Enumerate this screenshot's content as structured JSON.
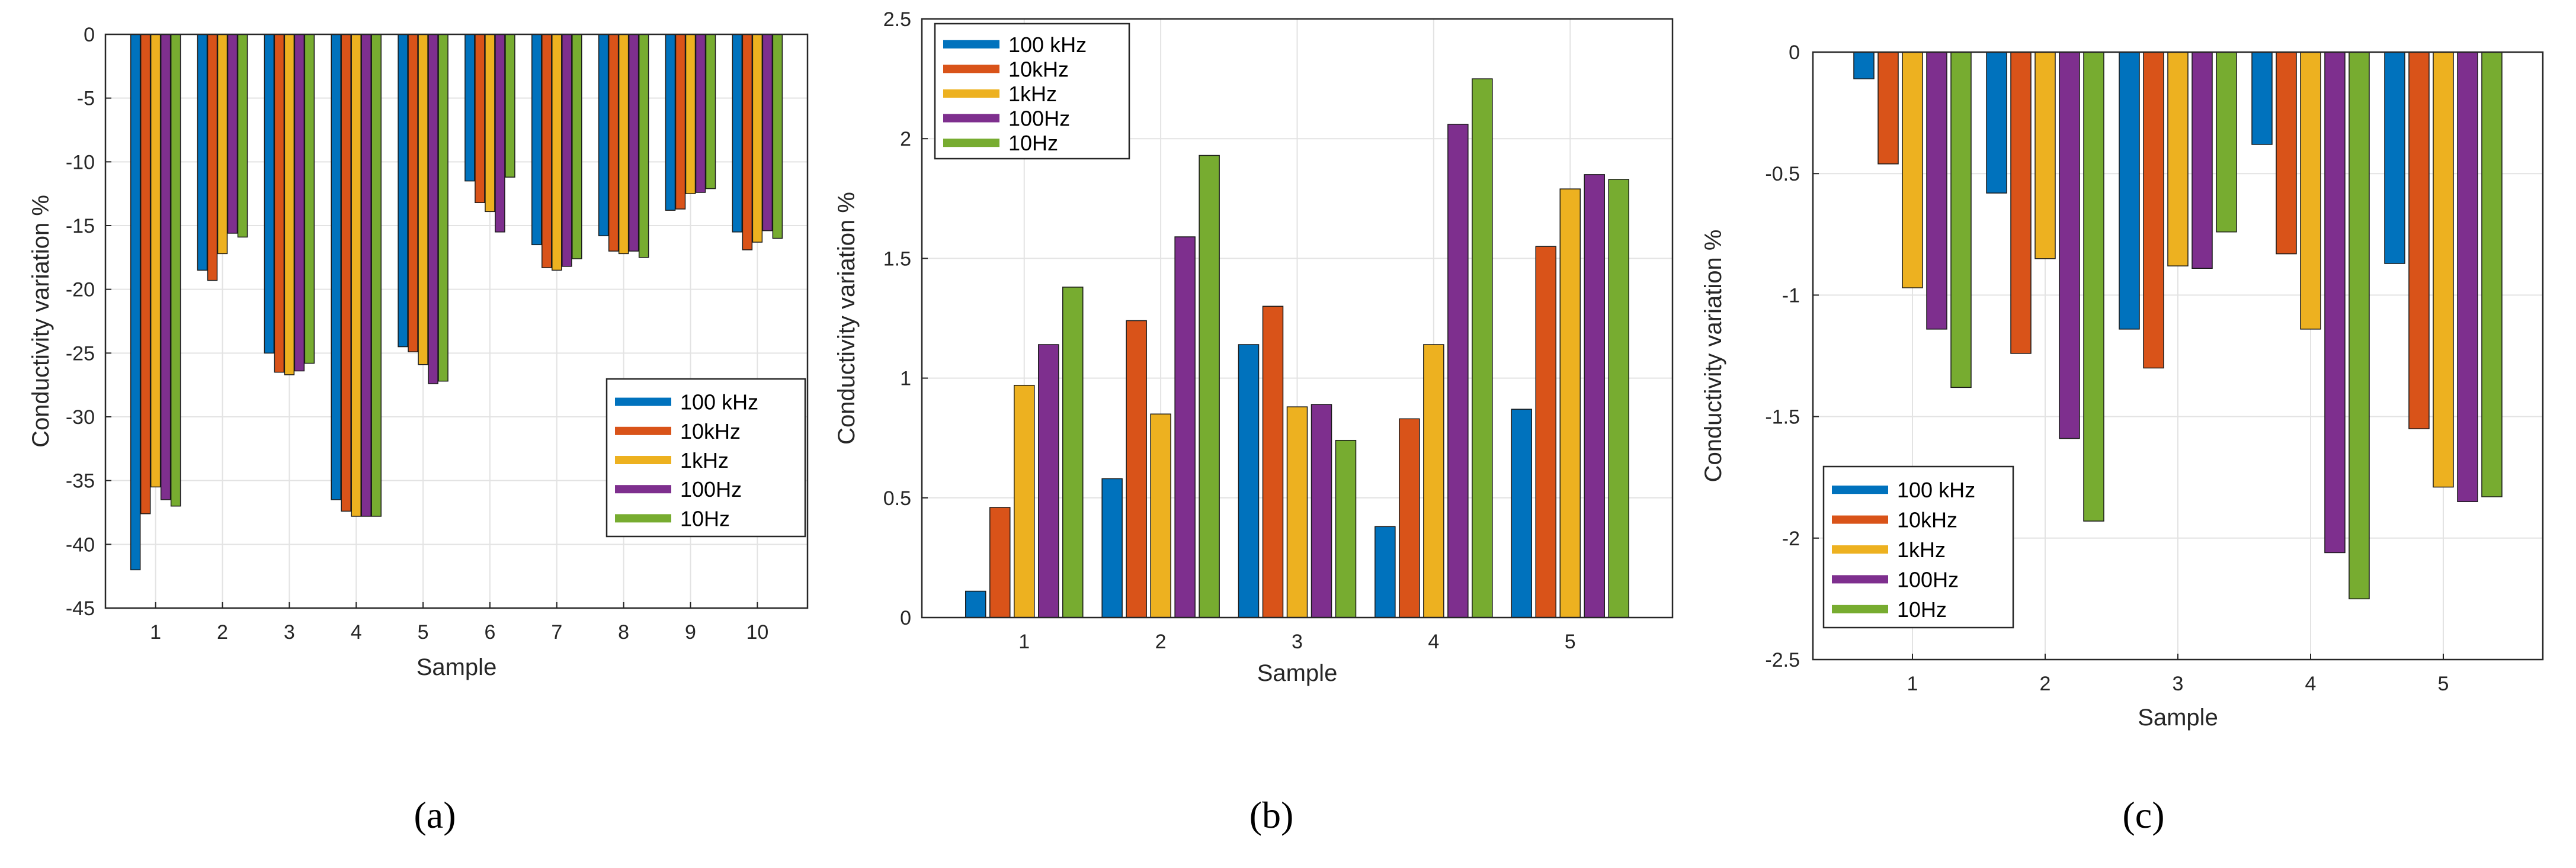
{
  "chart_data": [
    {
      "panel": "a",
      "caption": "(a)",
      "type": "bar",
      "categories": [
        "1",
        "2",
        "3",
        "4",
        "5",
        "6",
        "7",
        "8",
        "9",
        "10"
      ],
      "xlabel": "Sample",
      "ylabel": "Conductivity variation %",
      "ylim": [
        -45,
        0
      ],
      "yticks": [
        0,
        -5,
        -10,
        -15,
        -20,
        -25,
        -30,
        -35,
        -40,
        -45
      ],
      "grid": true,
      "legend_position": "right-middle",
      "series": [
        {
          "name": "100 kHz",
          "color": "#0072BD",
          "values": [
            -42,
            -18.5,
            -25,
            -36.5,
            -24.5,
            -11.5,
            -16.5,
            -15.8,
            -13.8,
            -15.5
          ]
        },
        {
          "name": "10kHz",
          "color": "#D95319",
          "values": [
            -37.6,
            -19.3,
            -26.5,
            -37.4,
            -24.9,
            -13.2,
            -18.3,
            -17,
            -13.7,
            -16.9
          ]
        },
        {
          "name": "1kHz",
          "color": "#EDB120",
          "values": [
            -35.5,
            -17.2,
            -26.7,
            -37.8,
            -25.9,
            -13.9,
            -18.5,
            -17.2,
            -12.5,
            -16.3
          ]
        },
        {
          "name": "100Hz",
          "color": "#7E2F8E",
          "values": [
            -36.5,
            -15.6,
            -26.4,
            -37.8,
            -27.4,
            -15.5,
            -18.2,
            -17,
            -12.4,
            -15.4
          ]
        },
        {
          "name": "10Hz",
          "color": "#77AC30",
          "values": [
            -37,
            -15.9,
            -25.8,
            -37.8,
            -27.2,
            -11.2,
            -17.6,
            -17.5,
            -12.1,
            -16
          ]
        }
      ]
    },
    {
      "panel": "b",
      "caption": "(b)",
      "type": "bar",
      "categories": [
        "1",
        "2",
        "3",
        "4",
        "5"
      ],
      "xlabel": "Sample",
      "ylabel": "Conductivity variation %",
      "ylim": [
        0,
        2.5
      ],
      "yticks": [
        0,
        0.5,
        1,
        1.5,
        2,
        2.5
      ],
      "grid": true,
      "legend_position": "top-left",
      "series": [
        {
          "name": "100 kHz",
          "color": "#0072BD",
          "values": [
            0.11,
            0.58,
            1.14,
            0.38,
            0.87
          ]
        },
        {
          "name": "10kHz",
          "color": "#D95319",
          "values": [
            0.46,
            1.24,
            1.3,
            0.83,
            1.55
          ]
        },
        {
          "name": "1kHz",
          "color": "#EDB120",
          "values": [
            0.97,
            0.85,
            0.88,
            1.14,
            1.79
          ]
        },
        {
          "name": "100Hz",
          "color": "#7E2F8E",
          "values": [
            1.14,
            1.59,
            0.89,
            2.06,
            1.85
          ]
        },
        {
          "name": "10Hz",
          "color": "#77AC30",
          "values": [
            1.38,
            1.93,
            0.74,
            2.25,
            1.83
          ]
        }
      ]
    },
    {
      "panel": "c",
      "caption": "(c)",
      "type": "bar",
      "categories": [
        "1",
        "2",
        "3",
        "4",
        "5"
      ],
      "xlabel": "Sample",
      "ylabel": "Conductivity variation %",
      "ylim": [
        -2.5,
        0
      ],
      "yticks": [
        0,
        -0.5,
        -1,
        -1.5,
        -2,
        -2.5
      ],
      "grid": true,
      "legend_position": "bottom-left",
      "series": [
        {
          "name": "100 kHz",
          "color": "#0072BD",
          "values": [
            -0.11,
            -0.58,
            -1.14,
            -0.38,
            -0.87
          ]
        },
        {
          "name": "10kHz",
          "color": "#D95319",
          "values": [
            -0.46,
            -1.24,
            -1.3,
            -0.83,
            -1.55
          ]
        },
        {
          "name": "1kHz",
          "color": "#EDB120",
          "values": [
            -0.97,
            -0.85,
            -0.88,
            -1.14,
            -1.79
          ]
        },
        {
          "name": "100Hz",
          "color": "#7E2F8E",
          "values": [
            -1.14,
            -1.59,
            -0.89,
            -2.06,
            -1.85
          ]
        },
        {
          "name": "10Hz",
          "color": "#77AC30",
          "values": [
            -1.38,
            -1.93,
            -0.74,
            -2.25,
            -1.83
          ]
        }
      ]
    }
  ]
}
